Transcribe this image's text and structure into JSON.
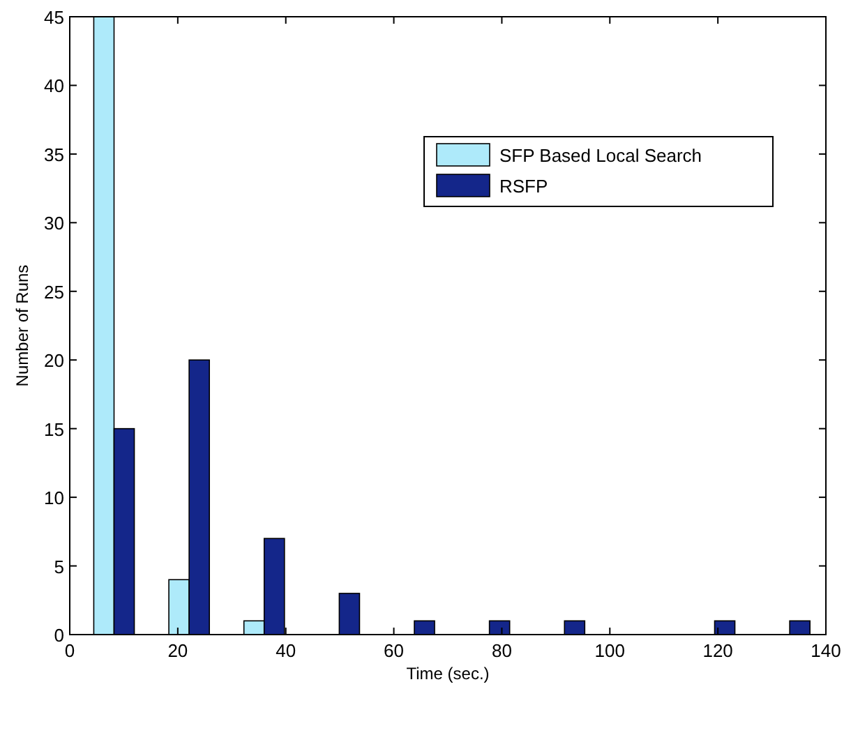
{
  "chart_data": {
    "type": "bar",
    "xlabel": "Time (sec.)",
    "ylabel": "Number of Runs",
    "x": [
      8.2,
      22.1,
      36,
      49.9,
      63.8,
      77.7,
      91.6,
      105.5,
      119.4,
      133.3
    ],
    "series": [
      {
        "name": "SFP Based Local Search",
        "color": "#aeeafa",
        "values": [
          45,
          4,
          1,
          0,
          0,
          0,
          0,
          0,
          0,
          0
        ]
      },
      {
        "name": "RSFP",
        "color": "#14268a",
        "values": [
          15,
          20,
          7,
          3,
          1,
          1,
          1,
          0,
          1,
          1
        ]
      }
    ],
    "xlim": [
      0,
      140
    ],
    "xticks": [
      0,
      20,
      40,
      60,
      80,
      100,
      120,
      140
    ],
    "ylim": [
      0,
      45
    ],
    "yticks": [
      0,
      5,
      10,
      15,
      20,
      25,
      30,
      35,
      40,
      45
    ],
    "legend": "top right",
    "grid": false
  }
}
